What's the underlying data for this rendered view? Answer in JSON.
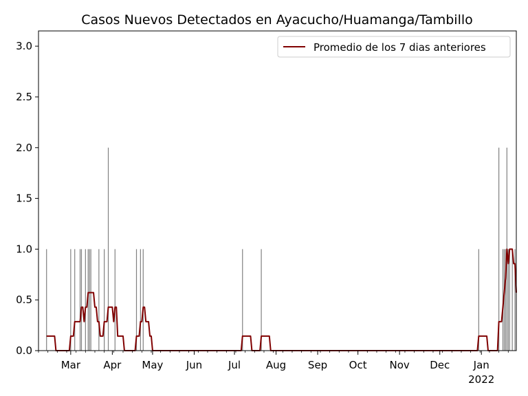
{
  "chart_data": {
    "type": "bar",
    "title": "Casos Nuevos Detectados en Ayacucho/Huamanga/Tambillo",
    "xlabel": "",
    "ylabel": "",
    "ylim": [
      0,
      3.15
    ],
    "yticks": [
      0.0,
      0.5,
      1.0,
      1.5,
      2.0,
      2.5,
      3.0
    ],
    "ytick_labels": [
      "0.0",
      "0.5",
      "1.0",
      "1.5",
      "2.0",
      "2.5",
      "3.0"
    ],
    "xlim": [
      "2021-02-05",
      "2022-01-27"
    ],
    "xticks": [
      {
        "date": "2021-03-01",
        "label": "Mar"
      },
      {
        "date": "2021-04-01",
        "label": "Apr"
      },
      {
        "date": "2021-05-01",
        "label": "May"
      },
      {
        "date": "2021-06-01",
        "label": "Jun"
      },
      {
        "date": "2021-07-01",
        "label": "Jul"
      },
      {
        "date": "2021-08-01",
        "label": "Aug"
      },
      {
        "date": "2021-09-01",
        "label": "Sep"
      },
      {
        "date": "2021-10-01",
        "label": "Oct"
      },
      {
        "date": "2021-11-01",
        "label": "Nov"
      },
      {
        "date": "2021-12-01",
        "label": "Dec"
      },
      {
        "date": "2022-01-01",
        "label": "Jan"
      }
    ],
    "year_label": "2022",
    "legend": {
      "position": "top-right",
      "entries": [
        "Promedio de los 7 dias anteriores"
      ]
    },
    "grid": false,
    "colors": {
      "bars": "#808080",
      "line": "#800000"
    },
    "bars": [
      {
        "date": "2021-02-11",
        "value": 1
      },
      {
        "date": "2021-03-01",
        "value": 1
      },
      {
        "date": "2021-03-04",
        "value": 1
      },
      {
        "date": "2021-03-08",
        "value": 1
      },
      {
        "date": "2021-03-09",
        "value": 1
      },
      {
        "date": "2021-03-12",
        "value": 1
      },
      {
        "date": "2021-03-14",
        "value": 1
      },
      {
        "date": "2021-03-15",
        "value": 1
      },
      {
        "date": "2021-03-16",
        "value": 1
      },
      {
        "date": "2021-03-22",
        "value": 1
      },
      {
        "date": "2021-03-26",
        "value": 1
      },
      {
        "date": "2021-03-29",
        "value": 2
      },
      {
        "date": "2021-04-03",
        "value": 1
      },
      {
        "date": "2021-04-19",
        "value": 1
      },
      {
        "date": "2021-04-22",
        "value": 1
      },
      {
        "date": "2021-04-24",
        "value": 1
      },
      {
        "date": "2021-07-07",
        "value": 1
      },
      {
        "date": "2021-07-21",
        "value": 1
      },
      {
        "date": "2021-12-30",
        "value": 1
      },
      {
        "date": "2022-01-14",
        "value": 2
      },
      {
        "date": "2022-01-17",
        "value": 1
      },
      {
        "date": "2022-01-18",
        "value": 1
      },
      {
        "date": "2022-01-19",
        "value": 1
      },
      {
        "date": "2022-01-20",
        "value": 2
      },
      {
        "date": "2022-01-21",
        "value": 1
      },
      {
        "date": "2022-01-22",
        "value": 1
      },
      {
        "date": "2022-01-24",
        "value": 1
      },
      {
        "date": "2022-01-26",
        "value": 1
      }
    ],
    "series": [
      {
        "name": "Promedio de los 7 dias anteriores",
        "kind": "rolling_mean",
        "window_days": 7
      }
    ]
  }
}
